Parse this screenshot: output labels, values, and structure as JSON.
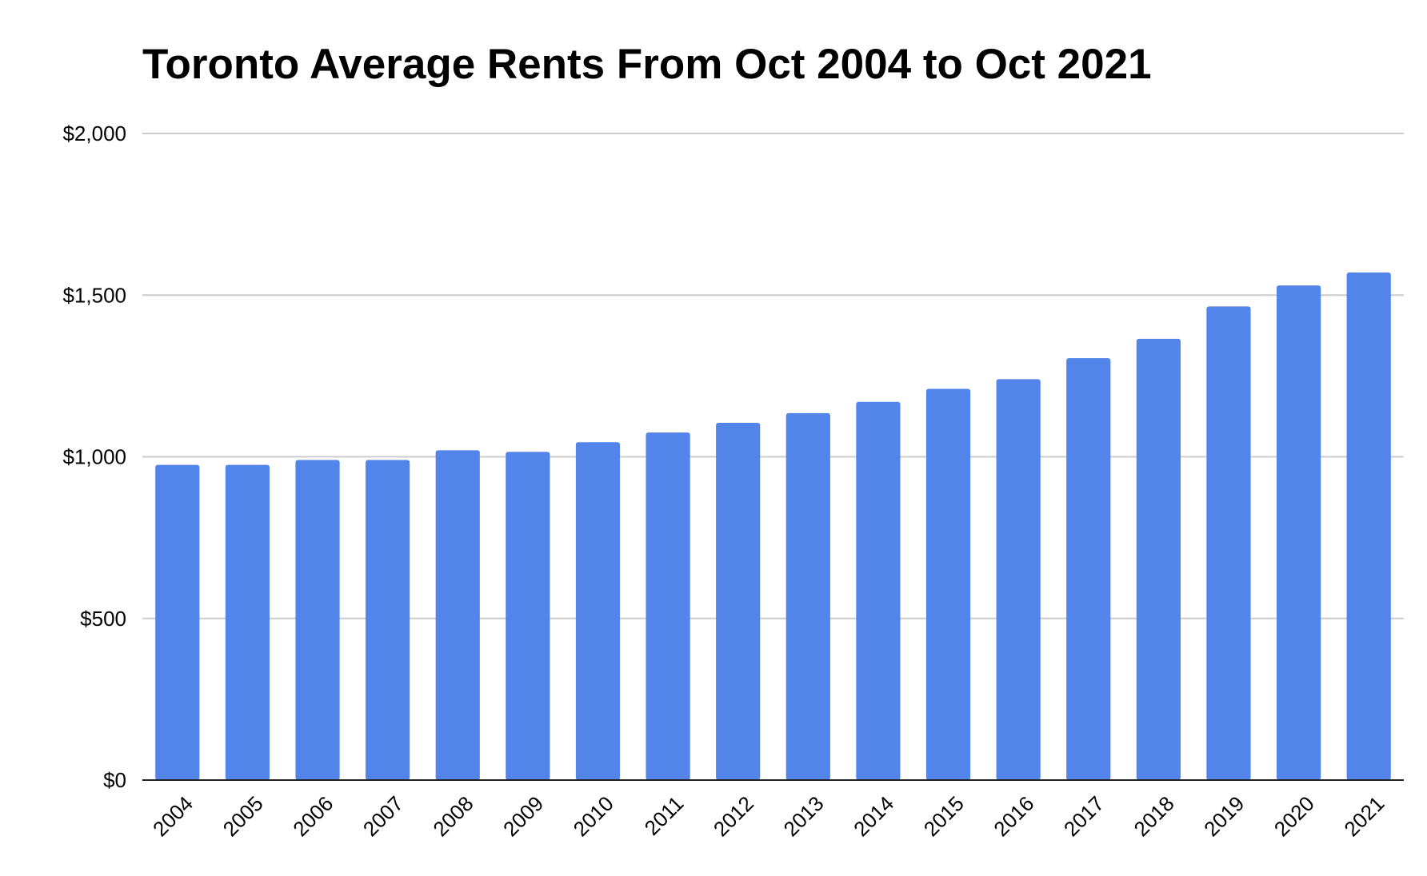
{
  "chart_data": {
    "type": "bar",
    "title": "Toronto Average Rents From Oct 2004 to Oct 2021",
    "categories": [
      "2004",
      "2005",
      "2006",
      "2007",
      "2008",
      "2009",
      "2010",
      "2011",
      "2012",
      "2013",
      "2014",
      "2015",
      "2016",
      "2017",
      "2018",
      "2019",
      "2020",
      "2021"
    ],
    "values": [
      975,
      975,
      990,
      990,
      1020,
      1015,
      1045,
      1075,
      1105,
      1135,
      1170,
      1210,
      1240,
      1305,
      1365,
      1465,
      1530,
      1570
    ],
    "color": "#5384ea",
    "ylim": [
      0,
      2000
    ],
    "yticks": [
      {
        "value": 0,
        "label": "$0"
      },
      {
        "value": 500,
        "label": "$500"
      },
      {
        "value": 1000,
        "label": "$1,000"
      },
      {
        "value": 1500,
        "label": "$1,500"
      },
      {
        "value": 2000,
        "label": "$2,000"
      }
    ],
    "grid": true
  }
}
